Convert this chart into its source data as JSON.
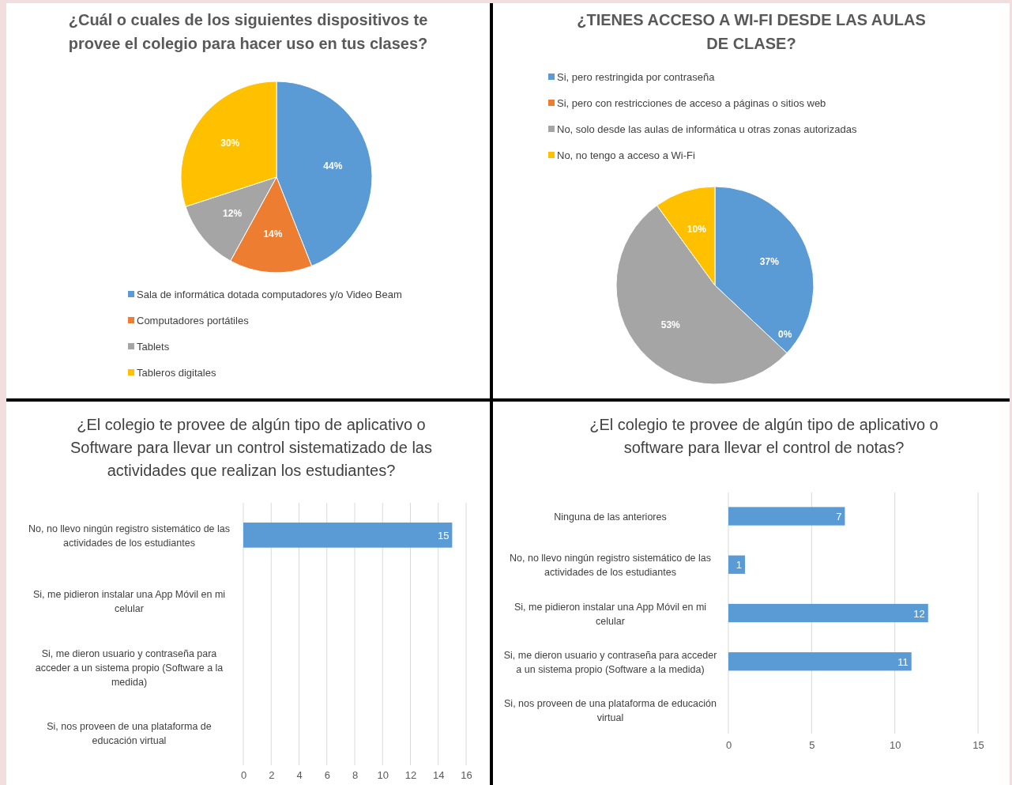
{
  "chart_data": [
    {
      "type": "pie",
      "title": "¿Cuál o cuales de los siguientes dispositivos te provee el colegio para hacer uso en tus clases?",
      "categories": [
        "Sala de informática dotada computadores y/o Video Beam",
        "Computadores portátiles",
        "Tablets",
        "Tableros digitales"
      ],
      "values": [
        44,
        14,
        12,
        30
      ],
      "colors": [
        "#5b9bd5",
        "#ed7d31",
        "#a5a5a5",
        "#ffc000"
      ],
      "value_labels": [
        "44%",
        "14%",
        "12%",
        "30%"
      ],
      "legend": "bottom"
    },
    {
      "type": "pie",
      "title": "¿TIENES ACCESO A WI-FI DESDE LAS AULAS DE CLASE?",
      "categories": [
        "Si, pero restringida por contraseña",
        "Si, pero con restricciones de acceso a páginas o sitios web",
        "No, solo desde las aulas de informática u otras zonas autorizadas",
        "No, no tengo a acceso a Wi-Fi"
      ],
      "values": [
        37,
        0,
        53,
        10
      ],
      "colors": [
        "#5b9bd5",
        "#ed7d31",
        "#a5a5a5",
        "#ffc000"
      ],
      "value_labels": [
        "37%",
        "0%",
        "53%",
        "10%"
      ],
      "legend": "top"
    },
    {
      "type": "bar",
      "orientation": "horizontal",
      "title": "¿El colegio te provee de algún tipo de aplicativo o Software para llevar un control sistematizado de las actividades que realizan los estudiantes?",
      "categories": [
        "No, no llevo ningún registro sistemático de las actividades de los estudiantes",
        "Si, me pidieron instalar una App Móvil en mi celular",
        "Si, me dieron usuario y contraseña para acceder a un sistema propio (Software a la medida)",
        "Si, nos proveen de una plataforma de educación virtual"
      ],
      "values": [
        15,
        0,
        0,
        0
      ],
      "value_labels": [
        "15",
        null,
        null,
        null
      ],
      "color": "#5b9bd5",
      "xlim": [
        0,
        16
      ],
      "xticks": [
        0,
        2,
        4,
        6,
        8,
        10,
        12,
        14,
        16
      ],
      "grid": "x"
    },
    {
      "type": "bar",
      "orientation": "horizontal",
      "title": "¿El colegio te provee de algún tipo de aplicativo o software para llevar el control de notas?",
      "categories": [
        "Ninguna de las anteriores",
        "No, no llevo ningún registro sistemático de las actividades de los estudiantes",
        "Si, me pidieron instalar una App Móvil en mi celular",
        "Si, me dieron usuario y contraseña para acceder a un sistema propio (Software a la medida)",
        "Si, nos proveen de una plataforma de educación virtual"
      ],
      "values": [
        7,
        1,
        12,
        11,
        0
      ],
      "value_labels": [
        "7",
        "1",
        "12",
        "11",
        null
      ],
      "color": "#5b9bd5",
      "xlim": [
        0,
        15
      ],
      "xticks": [
        0,
        5,
        10,
        15
      ],
      "grid": "x"
    }
  ]
}
